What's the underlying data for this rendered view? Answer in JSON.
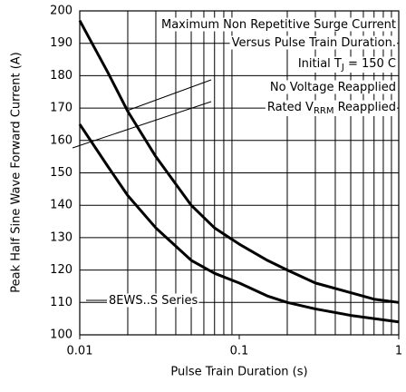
{
  "chart_data": {
    "type": "line",
    "xlabel": "Pulse Train Duration (s)",
    "ylabel": "Peak Half Sine Wave Forward Current (A)",
    "x": [
      0.01,
      0.015,
      0.02,
      0.03,
      0.05,
      0.07,
      0.1,
      0.15,
      0.2,
      0.3,
      0.5,
      0.7,
      1
    ],
    "series": [
      {
        "color": "#000000",
        "values": [
          197,
          181,
          169,
          155,
          140,
          133,
          128,
          123,
          120,
          116,
          113,
          111,
          110
        ]
      },
      {
        "color": "#000000",
        "values": [
          165,
          152,
          143,
          133,
          123,
          119,
          116,
          112,
          110,
          108,
          106,
          105,
          104
        ]
      }
    ],
    "xscale": "log",
    "xlim": [
      0.01,
      1
    ],
    "xticks": [
      0.01,
      0.1,
      1
    ],
    "xminor": [
      0.02,
      0.03,
      0.04,
      0.05,
      0.06,
      0.07,
      0.08,
      0.09,
      0.2,
      0.3,
      0.4,
      0.5,
      0.6,
      0.7,
      0.8,
      0.9
    ],
    "ylim": [
      100,
      200
    ],
    "yticks": [
      100,
      110,
      120,
      130,
      140,
      150,
      160,
      170,
      180,
      190,
      200
    ],
    "grid": true,
    "annotations": [
      {
        "text": "Maximum Non Repetitive Surge Current"
      },
      {
        "text": "Versus Pulse Train Duration."
      },
      {
        "text": "Initial T",
        "sub": "J",
        "after": " = 150 C"
      },
      {
        "text": "No Voltage Reapplied"
      },
      {
        "text": "Rated V",
        "sub": "RRM",
        "after": " Reapplied"
      },
      {
        "text": "8EWS..S Series"
      }
    ]
  }
}
